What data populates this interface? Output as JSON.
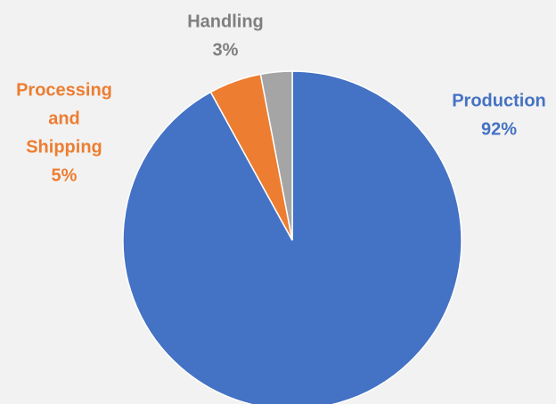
{
  "chart_data": {
    "type": "pie",
    "title": "",
    "slices": [
      {
        "name": "Production",
        "label_lines": [
          "Production"
        ],
        "percent_label": "92%",
        "value": 92,
        "color": "#4472c4",
        "label_color": "#4472c4"
      },
      {
        "name": "Processing and Shipping",
        "label_lines": [
          "Processing",
          "and",
          "Shipping"
        ],
        "percent_label": "5%",
        "value": 5,
        "color": "#ed7d31",
        "label_color": "#ed7d31"
      },
      {
        "name": "Handling",
        "label_lines": [
          "Handling"
        ],
        "percent_label": "3%",
        "value": 3,
        "color": "#a5a5a5",
        "label_color": "#7f7f7f"
      }
    ],
    "start_angle": "12 o'clock",
    "direction": "clockwise",
    "legend": "none",
    "data_labels": "outside, category name and percentage"
  }
}
